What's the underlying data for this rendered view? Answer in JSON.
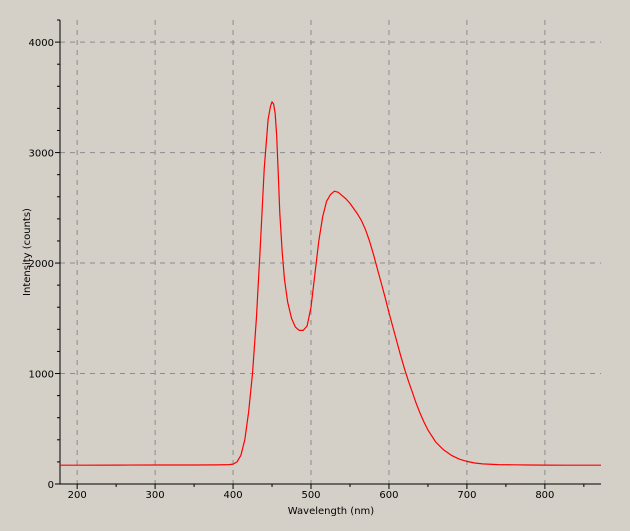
{
  "chart_data": {
    "type": "line",
    "title": "",
    "xlabel": "Wavelength (nm)",
    "ylabel": "Intensity (counts)",
    "xlim": [
      178,
      872
    ],
    "ylim": [
      0,
      4200
    ],
    "x_ticks": [
      200,
      300,
      400,
      500,
      600,
      700,
      800
    ],
    "y_ticks": [
      0,
      1000,
      2000,
      3000,
      4000
    ],
    "grid": true,
    "legend": "none",
    "series": [
      {
        "color": "#ff0000",
        "x": [
          178,
          200,
          250,
          300,
          350,
          380,
          395,
          400,
          405,
          410,
          415,
          420,
          425,
          430,
          435,
          440,
          445,
          448,
          450,
          452,
          454,
          456,
          458,
          460,
          463,
          466,
          470,
          475,
          480,
          485,
          490,
          495,
          500,
          505,
          510,
          515,
          520,
          525,
          530,
          535,
          540,
          545,
          550,
          555,
          560,
          565,
          570,
          575,
          580,
          585,
          590,
          595,
          600,
          605,
          610,
          615,
          620,
          625,
          630,
          635,
          640,
          645,
          650,
          660,
          670,
          680,
          690,
          700,
          710,
          720,
          740,
          760,
          780,
          800,
          830,
          850,
          872
        ],
        "y": [
          170,
          170,
          171,
          172,
          172,
          173,
          176,
          180,
          200,
          260,
          400,
          650,
          1000,
          1500,
          2150,
          2850,
          3300,
          3420,
          3460,
          3440,
          3350,
          3150,
          2800,
          2450,
          2100,
          1850,
          1650,
          1500,
          1420,
          1390,
          1390,
          1430,
          1600,
          1900,
          2200,
          2420,
          2560,
          2620,
          2650,
          2640,
          2610,
          2580,
          2540,
          2490,
          2440,
          2380,
          2300,
          2200,
          2080,
          1950,
          1820,
          1690,
          1550,
          1420,
          1290,
          1160,
          1040,
          930,
          830,
          730,
          640,
          560,
          490,
          380,
          310,
          260,
          225,
          205,
          190,
          182,
          176,
          174,
          172,
          171,
          170,
          170,
          170
        ]
      }
    ]
  },
  "colors": {
    "background": "#d4d0c8",
    "line": "#ff0000",
    "grid": "#8c8c8c",
    "axis": "#000000"
  }
}
